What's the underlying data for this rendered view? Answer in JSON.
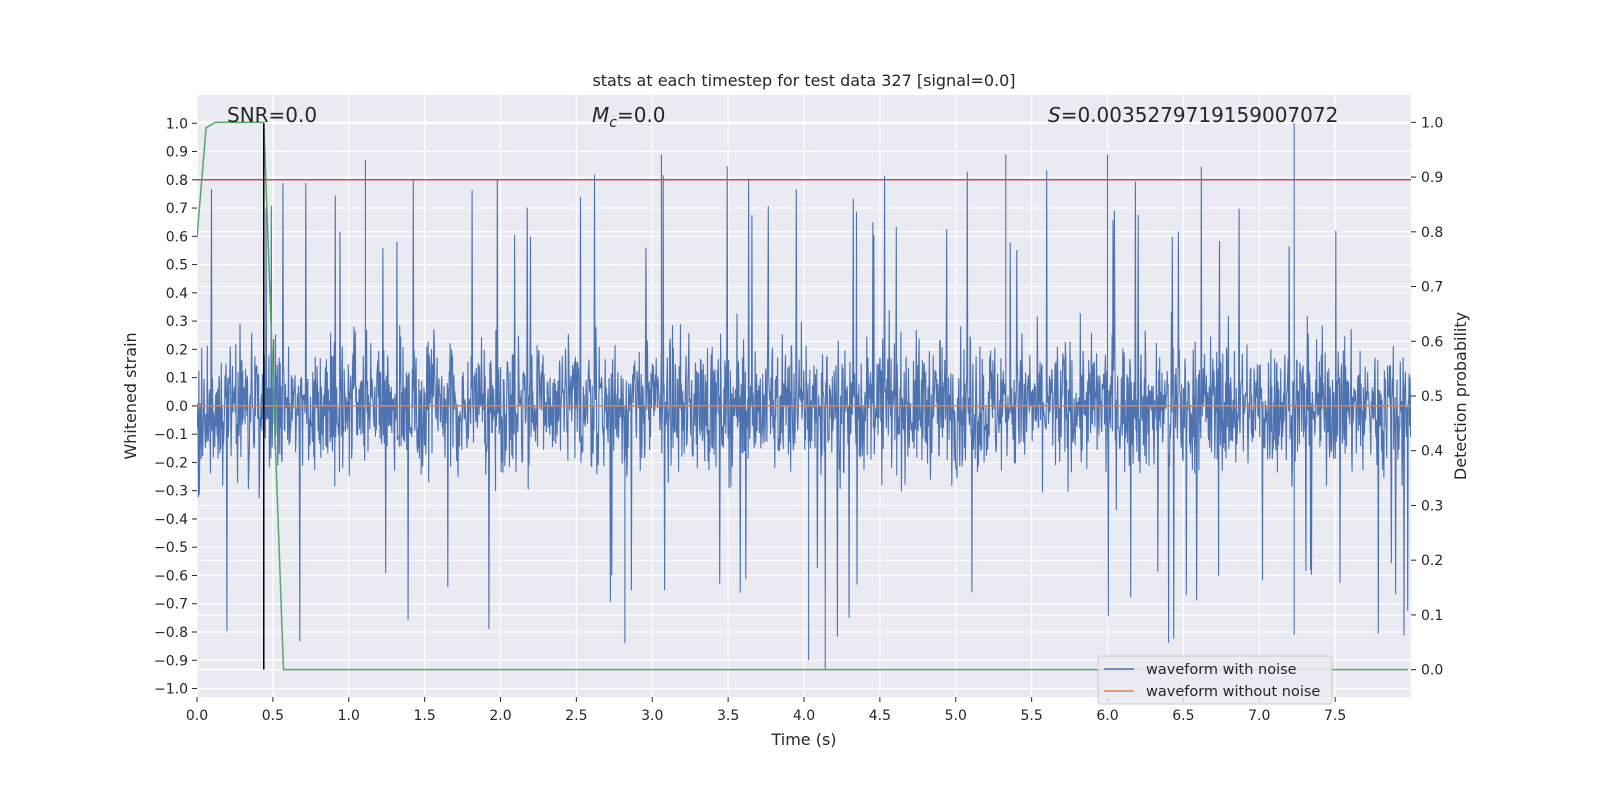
{
  "chart_data": {
    "type": "line",
    "title": "stats at each timestep for test data 327 [signal=0.0]",
    "xlabel": "Time (s)",
    "ylabel": "Whitened strain",
    "ylabel_right": "Detection probability",
    "xlim": [
      0.0,
      8.0
    ],
    "ylim": [
      -1.03,
      1.1
    ],
    "ylim_right": [
      -0.05,
      1.05
    ],
    "x_ticks": [
      0.0,
      0.5,
      1.0,
      1.5,
      2.0,
      2.5,
      3.0,
      3.5,
      4.0,
      4.5,
      5.0,
      5.5,
      6.0,
      6.5,
      7.0,
      7.5
    ],
    "x_tick_labels": [
      "0.0",
      "0.5",
      "1.0",
      "1.5",
      "2.0",
      "2.5",
      "3.0",
      "3.5",
      "4.0",
      "4.5",
      "5.0",
      "5.5",
      "6.0",
      "6.5",
      "7.0",
      "7.5"
    ],
    "y_ticks": [
      1.0,
      0.9,
      0.8,
      0.7,
      0.6,
      0.5,
      0.4,
      0.3,
      0.2,
      0.1,
      0.0,
      -0.1,
      -0.2,
      -0.3,
      -0.4,
      -0.5,
      -0.6,
      -0.7,
      -0.8,
      -0.9,
      -1.0
    ],
    "y_tick_labels": [
      "1.0",
      "0.9",
      "0.8",
      "0.7",
      "0.6",
      "0.5",
      "0.4",
      "0.3",
      "0.2",
      "0.1",
      "0.0",
      "−0.1",
      "−0.2",
      "−0.3",
      "−0.4",
      "−0.5",
      "−0.6",
      "−0.7",
      "−0.8",
      "−0.9",
      "−1.0"
    ],
    "y_ticks_right": [
      1.0,
      0.9,
      0.8,
      0.7,
      0.6,
      0.5,
      0.4,
      0.3,
      0.2,
      0.1,
      0.0
    ],
    "y_tick_labels_right": [
      "1.0",
      "0.9",
      "0.8",
      "0.7",
      "0.6",
      "0.5",
      "0.4",
      "0.3",
      "0.2",
      "0.1",
      "0.0"
    ],
    "annotations": {
      "snr": "SNR=0.0",
      "mc_symbol": "M",
      "mc_sub": "c",
      "mc_value": "=0.0",
      "s_symbol": "S",
      "s_value": "=0.0035279719159007072"
    },
    "series": [
      {
        "name": "waveform with noise",
        "color": "#4c72b0",
        "axis": "left",
        "description": "dense noisy whitened strain, roughly within ±0.45 with spikes to +1.0 and −0.93",
        "envelope_amplitude": 0.42,
        "max": 1.0,
        "min": -0.93
      },
      {
        "name": "waveform without noise",
        "color": "#dd8452",
        "axis": "left",
        "value": 0.0
      },
      {
        "name": "detection probability",
        "color": "#55a868",
        "axis": "right",
        "x": [
          0.0,
          0.06,
          0.12,
          0.44,
          0.57,
          7.98
        ],
        "values": [
          0.79,
          0.99,
          1.0,
          1.0,
          0.0,
          0.0
        ]
      }
    ],
    "threshold_line": {
      "value": 0.8,
      "axis": "left",
      "color": "#c44e52"
    },
    "vertical_marker": {
      "x": 0.44,
      "color": "#000000"
    },
    "legend": {
      "position": "bottom-right",
      "entries": [
        {
          "label": "waveform with noise",
          "color": "#4c72b0"
        },
        {
          "label": "waveform without noise",
          "color": "#dd8452"
        }
      ]
    },
    "grid": true
  }
}
